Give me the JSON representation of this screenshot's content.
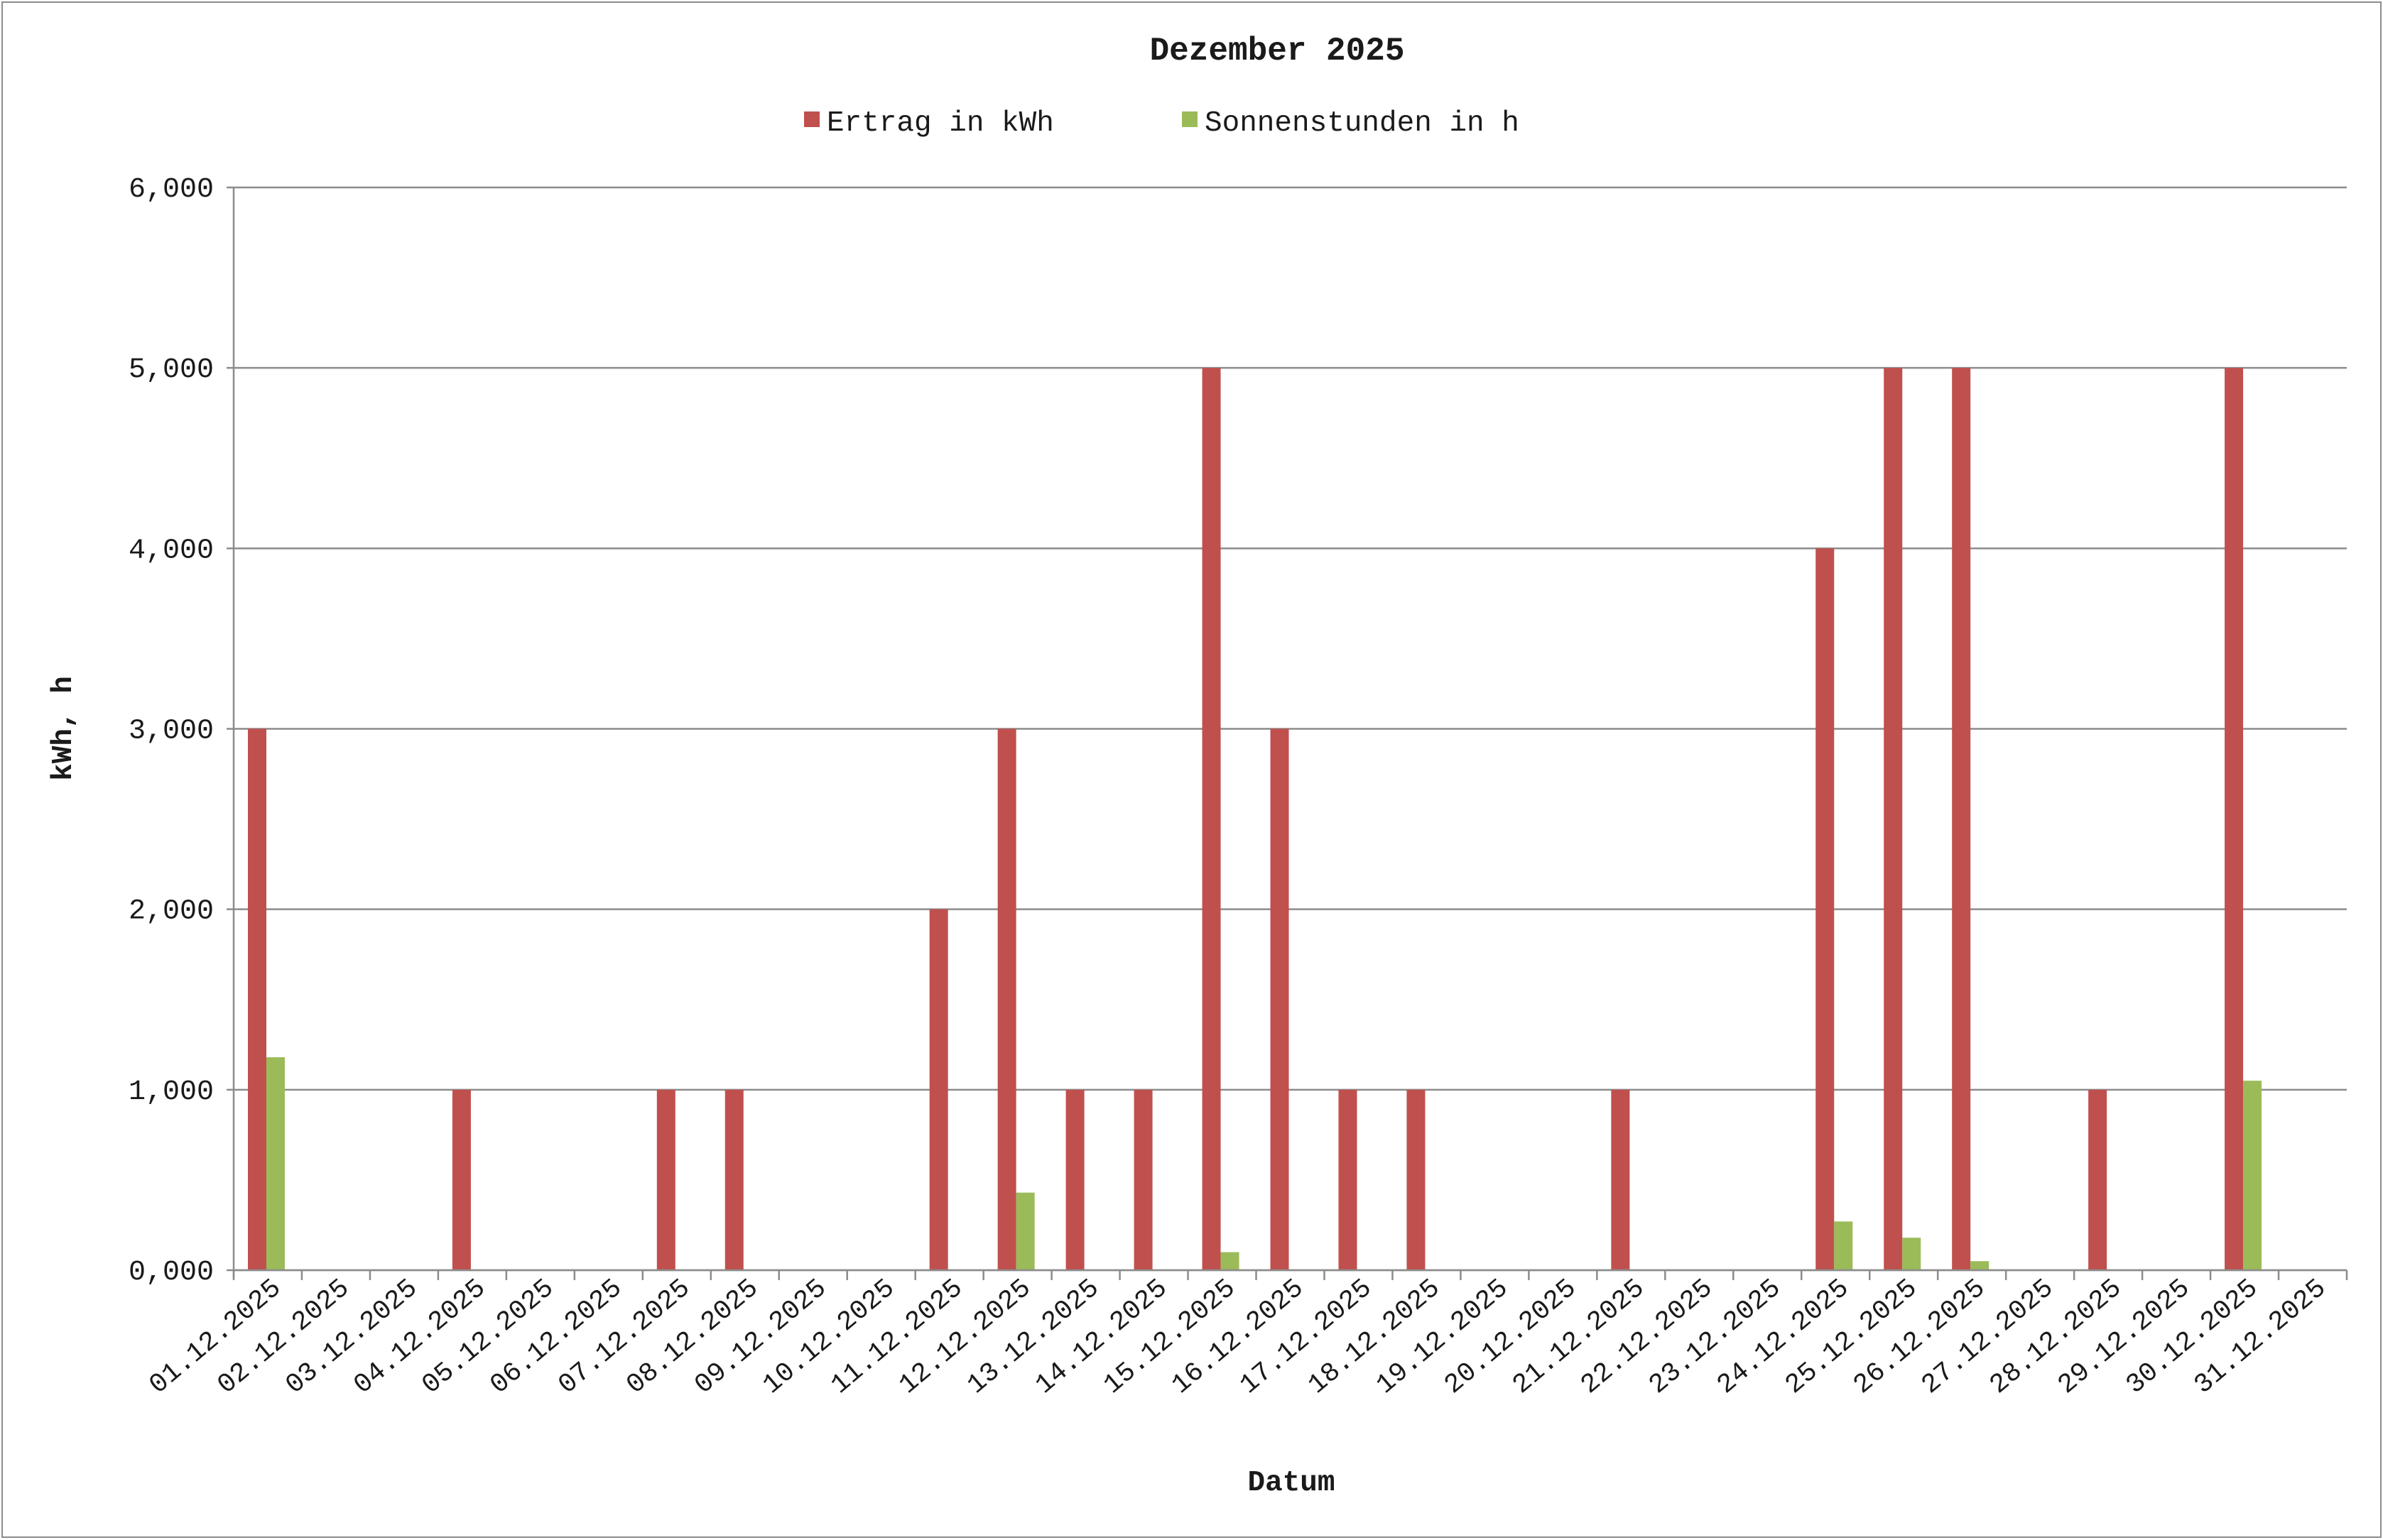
{
  "chart_data": {
    "type": "bar",
    "title": "Dezember 2025",
    "xlabel": "Datum",
    "ylabel": "kWh, h",
    "ylim": [
      0,
      6
    ],
    "yticks": [
      "0,000",
      "1,000",
      "2,000",
      "3,000",
      "4,000",
      "5,000",
      "6,000"
    ],
    "grid": true,
    "legend_position": "top",
    "categories": [
      "01.12.2025",
      "02.12.2025",
      "03.12.2025",
      "04.12.2025",
      "05.12.2025",
      "06.12.2025",
      "07.12.2025",
      "08.12.2025",
      "09.12.2025",
      "10.12.2025",
      "11.12.2025",
      "12.12.2025",
      "13.12.2025",
      "14.12.2025",
      "15.12.2025",
      "16.12.2025",
      "17.12.2025",
      "18.12.2025",
      "19.12.2025",
      "20.12.2025",
      "21.12.2025",
      "22.12.2025",
      "23.12.2025",
      "24.12.2025",
      "25.12.2025",
      "26.12.2025",
      "27.12.2025",
      "28.12.2025",
      "29.12.2025",
      "30.12.2025",
      "31.12.2025"
    ],
    "series": [
      {
        "name": "Ertrag in kWh",
        "color": "#c0504d",
        "values": [
          3,
          0,
          0,
          1,
          0,
          0,
          1,
          1,
          0,
          0,
          2,
          3,
          1,
          1,
          5,
          3,
          1,
          1,
          0,
          0,
          1,
          0,
          0,
          4,
          5,
          5,
          0,
          1,
          0,
          5,
          0
        ]
      },
      {
        "name": "Sonnenstunden in h",
        "color": "#9bbb59",
        "values": [
          1.18,
          0,
          0,
          0,
          0,
          0,
          0,
          0,
          0,
          0,
          0,
          0.43,
          0,
          0,
          0.1,
          0,
          0,
          0,
          0,
          0,
          0,
          0,
          0,
          0.27,
          0.18,
          0.05,
          0,
          0,
          0,
          1.05,
          0
        ]
      }
    ]
  }
}
